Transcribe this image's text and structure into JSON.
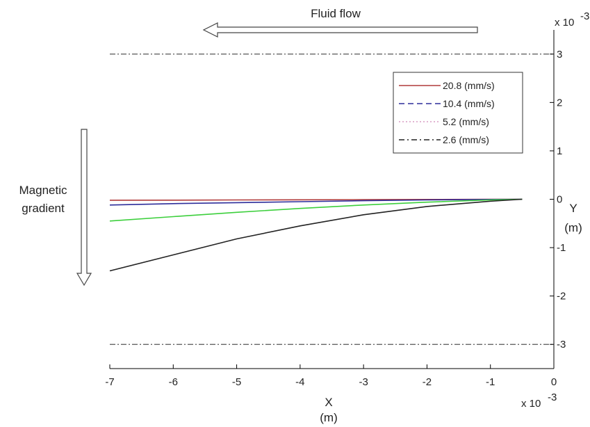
{
  "chart_data": {
    "type": "line",
    "annotations": {
      "flow_label": "Fluid flow",
      "gradient_label_1": "Magnetic",
      "gradient_label_2": "gradient"
    },
    "xlabel": "X",
    "xunit": "(m)",
    "ylabel": "Y",
    "yunit": "(m)",
    "x_multiplier": "x 10",
    "x_multiplier_exp": "-3",
    "y_multiplier": "x 10",
    "y_multiplier_exp": "-3",
    "xlim": [
      -7,
      0
    ],
    "ylim": [
      -3.5,
      3.5
    ],
    "xticks": [
      "-7",
      "-6",
      "-5",
      "-4",
      "-3",
      "-2",
      "-1",
      "0"
    ],
    "yticks": [
      "3",
      "2",
      "1",
      "0",
      "-1",
      "-2",
      "-3"
    ],
    "boundaries": [
      3,
      -3
    ],
    "legend_position": "upper-right",
    "series": [
      {
        "name": "20.8 (mm/s)",
        "color": "#b03a3a",
        "dash": "solid",
        "x": [
          -7,
          -6,
          -5,
          -4,
          -3,
          -2,
          -1,
          -0.5
        ],
        "y": [
          -0.02,
          -0.018,
          -0.015,
          -0.012,
          -0.008,
          -0.005,
          -0.002,
          0
        ]
      },
      {
        "name": "10.4 (mm/s)",
        "color": "#2d2d9a",
        "dash": "dash",
        "x": [
          -7,
          -6,
          -5,
          -4,
          -3,
          -2,
          -1,
          -0.5
        ],
        "y": [
          -0.12,
          -0.09,
          -0.07,
          -0.05,
          -0.03,
          -0.015,
          -0.005,
          0
        ]
      },
      {
        "name": "5.2 (mm/s)",
        "color": "#3ccf3c",
        "dash": "dot",
        "legend_color": "#d99bc4",
        "x": [
          -7,
          -6,
          -5,
          -4,
          -3,
          -2,
          -1,
          -0.5
        ],
        "y": [
          -0.45,
          -0.36,
          -0.27,
          -0.19,
          -0.12,
          -0.06,
          -0.015,
          0
        ]
      },
      {
        "name": "2.6 (mm/s)",
        "color": "#222222",
        "dash": "dashdot",
        "x": [
          -7,
          -6,
          -5,
          -4,
          -3,
          -2,
          -1,
          -0.5
        ],
        "y": [
          -1.48,
          -1.15,
          -0.82,
          -0.55,
          -0.32,
          -0.15,
          -0.04,
          0
        ]
      }
    ]
  }
}
